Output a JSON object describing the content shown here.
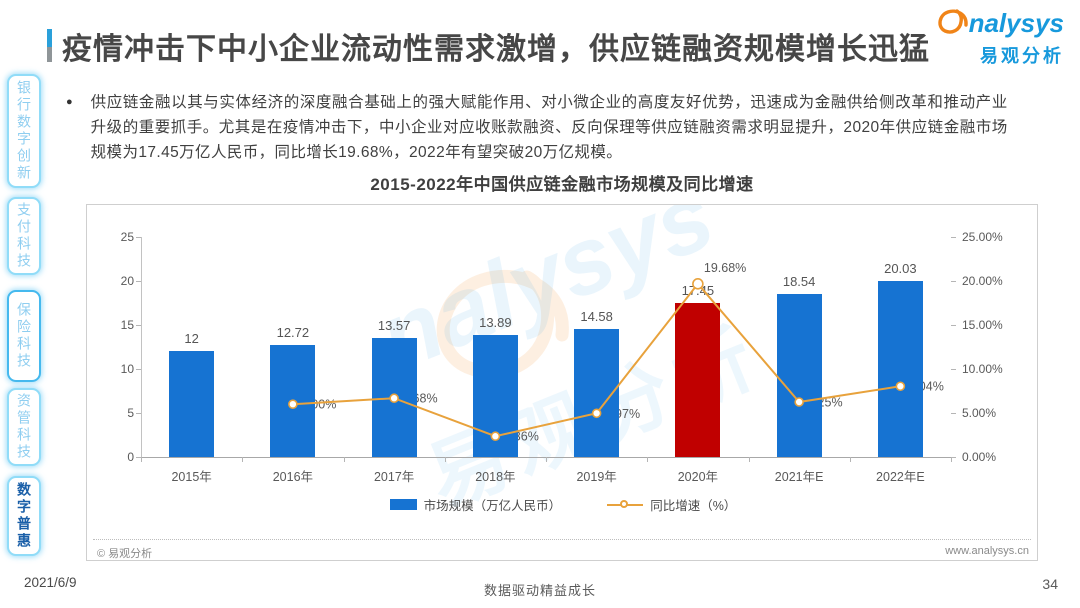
{
  "header": {
    "title": "疫情冲击下中小企业流动性需求激增，供应链融资规模增长迅猛",
    "logo_word": "nalysys",
    "logo_sub": "易观分析",
    "brand_color": "#1799dc"
  },
  "sidebar": {
    "items": [
      {
        "label": "银行数字创新",
        "active": false
      },
      {
        "label": "支付科技",
        "active": false
      },
      {
        "label": "保险科技",
        "active": false
      },
      {
        "label": "资管科技",
        "active": false
      },
      {
        "label": "数字普惠",
        "active": true
      }
    ]
  },
  "body": {
    "bullet_text": "供应链金融以其与实体经济的深度融合基础上的强大赋能作用、对小微企业的高度友好优势，迅速成为金融供给侧改革和推动产业升级的重要抓手。尤其是在疫情冲击下，中小企业对应收账款融资、反向保理等供应链融资需求明显提升，2020年供应链金融市场规模为17.45万亿人民币，同比增长19.68%，2022年有望突破20万亿规模。"
  },
  "chart_data": {
    "type": "bar+line",
    "title": "2015-2022年中国供应链金融市场规模及同比增速",
    "categories": [
      "2015年",
      "2016年",
      "2017年",
      "2018年",
      "2019年",
      "2020年",
      "2021年E",
      "2022年E"
    ],
    "series": [
      {
        "name": "市场规模（万亿人民币）",
        "type": "bar",
        "values": [
          12,
          12.72,
          13.57,
          13.89,
          14.58,
          17.45,
          18.54,
          20.03
        ],
        "labels": [
          "12",
          "12.72",
          "13.57",
          "13.89",
          "14.58",
          "17.45",
          "18.54",
          "20.03"
        ],
        "highlight_index": 5
      },
      {
        "name": "同比增速（%）",
        "type": "line",
        "values": [
          null,
          6.0,
          6.68,
          2.36,
          4.97,
          19.68,
          6.25,
          8.04
        ],
        "labels": [
          null,
          "6.00%",
          "6.68%",
          "2.36%",
          "4.97%",
          "19.68%",
          "6.25%",
          "8.04%"
        ]
      }
    ],
    "left_axis": {
      "min": 0,
      "max": 25,
      "ticks": [
        "0",
        "5",
        "10",
        "15",
        "20",
        "25"
      ]
    },
    "right_axis": {
      "min": 0,
      "max": 25,
      "ticks": [
        "0.00%",
        "5.00%",
        "10.00%",
        "15.00%",
        "20.00%",
        "25.00%"
      ]
    },
    "colors": {
      "bar": "#1673d2",
      "bar_highlight": "#c00000",
      "line": "#e8a23c"
    },
    "legend_position": "bottom",
    "grid": false,
    "copyright": "© 易观分析",
    "website": "www.analysys.cn",
    "watermark_word": "nalysys",
    "watermark_sub": "易观分析"
  },
  "footer": {
    "date": "2021/6/9",
    "slogan": "数据驱动精益成长",
    "page_number": "34"
  }
}
